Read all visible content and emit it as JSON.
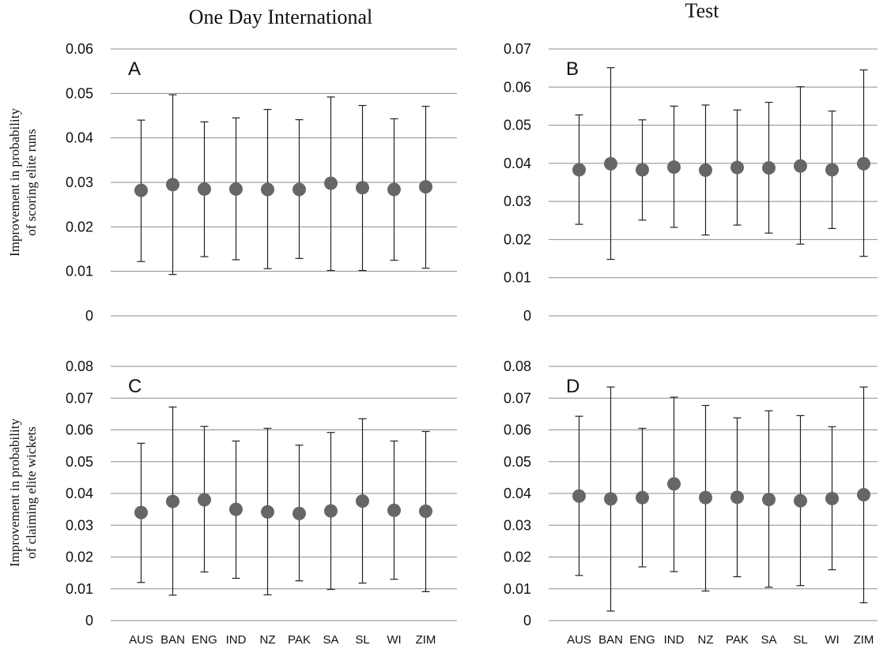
{
  "column_titles": [
    "One Day International",
    "Test"
  ],
  "row_labels": [
    [
      "Improvement in probability",
      "of scoring elite runs"
    ],
    [
      "Improvement in probability",
      "of claiming elite wickets"
    ]
  ],
  "colors": {
    "marker": "#666666",
    "grid": "#8c8c8c",
    "errorbar": "#222222"
  },
  "chart_data": [
    {
      "type": "scatter",
      "panel": "A",
      "categories": [
        "AUS",
        "BAN",
        "ENG",
        "IND",
        "NZ",
        "PAK",
        "SA",
        "SL",
        "WI",
        "ZIM"
      ],
      "values": [
        0.0282,
        0.0295,
        0.0285,
        0.0285,
        0.0284,
        0.0284,
        0.0298,
        0.0288,
        0.0284,
        0.029
      ],
      "lower": [
        0.0122,
        0.0093,
        0.0133,
        0.0126,
        0.0106,
        0.0129,
        0.0102,
        0.0102,
        0.0125,
        0.0107
      ],
      "upper": [
        0.044,
        0.0497,
        0.0436,
        0.0445,
        0.0464,
        0.0441,
        0.0492,
        0.0473,
        0.0443,
        0.0471
      ],
      "ylim": [
        0,
        0.06
      ],
      "yticks": [
        "0",
        "0.01",
        "0.02",
        "0.03",
        "0.04",
        "0.05",
        "0.06"
      ],
      "grid": true
    },
    {
      "type": "scatter",
      "panel": "B",
      "categories": [
        "AUS",
        "BAN",
        "ENG",
        "IND",
        "NZ",
        "PAK",
        "SA",
        "SL",
        "WI",
        "ZIM"
      ],
      "values": [
        0.0383,
        0.0399,
        0.0383,
        0.039,
        0.0382,
        0.0389,
        0.0388,
        0.0393,
        0.0383,
        0.0399
      ],
      "lower": [
        0.024,
        0.0148,
        0.0251,
        0.0232,
        0.0212,
        0.0238,
        0.0217,
        0.0188,
        0.0229,
        0.0156
      ],
      "upper": [
        0.0527,
        0.0651,
        0.0514,
        0.055,
        0.0553,
        0.054,
        0.056,
        0.0601,
        0.0537,
        0.0645
      ],
      "ylim": [
        0,
        0.07
      ],
      "yticks": [
        "0",
        "0.01",
        "0.02",
        "0.03",
        "0.04",
        "0.05",
        "0.06",
        "0.07"
      ],
      "grid": true
    },
    {
      "type": "scatter",
      "panel": "C",
      "categories": [
        "AUS",
        "BAN",
        "ENG",
        "IND",
        "NZ",
        "PAK",
        "SA",
        "SL",
        "WI",
        "ZIM"
      ],
      "values": [
        0.034,
        0.0375,
        0.038,
        0.035,
        0.0342,
        0.0337,
        0.0345,
        0.0376,
        0.0347,
        0.0344
      ],
      "lower": [
        0.012,
        0.008,
        0.0153,
        0.0133,
        0.0081,
        0.0125,
        0.0098,
        0.0118,
        0.013,
        0.0091
      ],
      "upper": [
        0.0558,
        0.0672,
        0.0611,
        0.0565,
        0.0605,
        0.0552,
        0.0592,
        0.0635,
        0.0565,
        0.0595
      ],
      "ylim": [
        0,
        0.08
      ],
      "yticks": [
        "0",
        "0.01",
        "0.02",
        "0.03",
        "0.04",
        "0.05",
        "0.06",
        "0.07",
        "0.08"
      ],
      "grid": true
    },
    {
      "type": "scatter",
      "panel": "D",
      "categories": [
        "AUS",
        "BAN",
        "ENG",
        "IND",
        "NZ",
        "PAK",
        "SA",
        "SL",
        "WI",
        "ZIM"
      ],
      "values": [
        0.0392,
        0.0383,
        0.0387,
        0.043,
        0.0387,
        0.0388,
        0.0381,
        0.0377,
        0.0384,
        0.0396
      ],
      "lower": [
        0.0142,
        0.003,
        0.0169,
        0.0154,
        0.0093,
        0.0138,
        0.0105,
        0.011,
        0.016,
        0.0056
      ],
      "upper": [
        0.0643,
        0.0735,
        0.0605,
        0.0703,
        0.0677,
        0.0638,
        0.066,
        0.0645,
        0.061,
        0.0735
      ],
      "ylim": [
        0,
        0.08
      ],
      "yticks": [
        "0",
        "0.01",
        "0.02",
        "0.03",
        "0.04",
        "0.05",
        "0.06",
        "0.07",
        "0.08"
      ],
      "grid": true
    }
  ]
}
